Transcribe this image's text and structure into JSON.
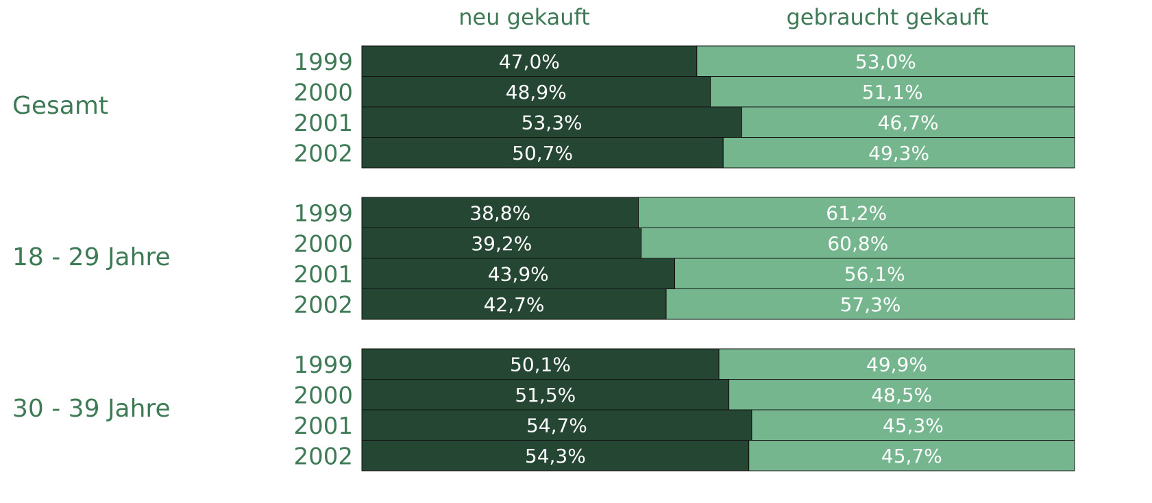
{
  "chart_data": {
    "type": "bar",
    "stacked": true,
    "orientation": "horizontal",
    "xlim": [
      0,
      100
    ],
    "groups": [
      {
        "name": "Gesamt",
        "categories": [
          "1999",
          "2000",
          "2001",
          "2002"
        ]
      },
      {
        "name": "18 - 29 Jahre",
        "categories": [
          "1999",
          "2000",
          "2001",
          "2002"
        ]
      },
      {
        "name": "30 - 39 Jahre",
        "categories": [
          "1999",
          "2000",
          "2001",
          "2002"
        ]
      }
    ],
    "series": [
      {
        "name": "neu gekauft",
        "color": "#264634",
        "values": [
          47.0,
          48.9,
          53.3,
          50.7,
          38.8,
          39.2,
          43.9,
          42.7,
          50.1,
          51.5,
          54.7,
          54.3
        ],
        "value_labels": [
          "47,0%",
          "48,9%",
          "53,3%",
          "50,7%",
          "38,8%",
          "39,2%",
          "43,9%",
          "42,7%",
          "50,1%",
          "51,5%",
          "54,7%",
          "54,3%"
        ]
      },
      {
        "name": "gebraucht gekauft",
        "color": "#75b68e",
        "values": [
          53.0,
          51.1,
          46.7,
          49.3,
          61.2,
          60.8,
          56.1,
          57.3,
          49.9,
          48.5,
          45.3,
          45.7
        ],
        "value_labels": [
          "53,0%",
          "51,1%",
          "46,7%",
          "49,3%",
          "61,2%",
          "60,8%",
          "56,1%",
          "57,3%",
          "49,9%",
          "48,5%",
          "45,3%",
          "45,7%"
        ]
      }
    ]
  }
}
